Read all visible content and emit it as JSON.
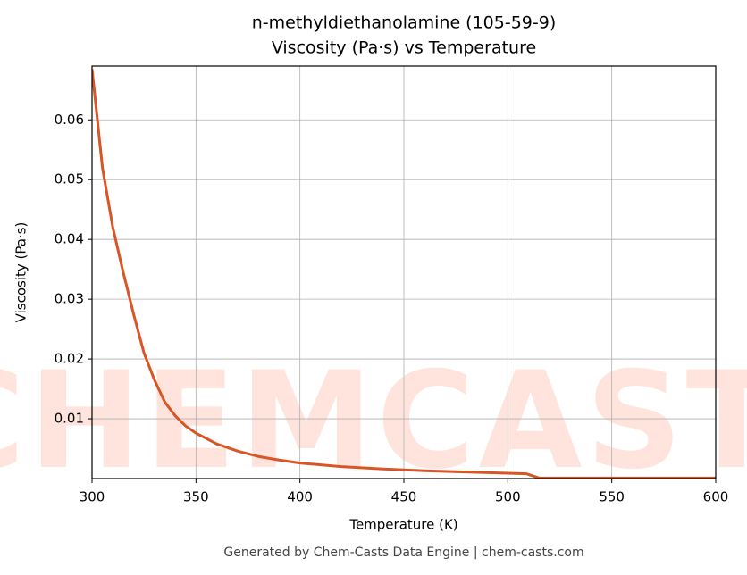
{
  "chart_data": {
    "type": "line",
    "title": "n-methyldiethanolamine (105-59-9)",
    "subtitle": "Viscosity (Pa·s) vs Temperature",
    "x_label": "Temperature (K)",
    "y_label": "Viscosity (Pa·s)",
    "footer": "Generated by Chem-Casts Data Engine | chem-casts.com",
    "watermark": "CHEMCASTS",
    "x": [
      300,
      305,
      310,
      315,
      320,
      325,
      330,
      335,
      340,
      345,
      350,
      360,
      370,
      380,
      390,
      400,
      420,
      440,
      460,
      480,
      500,
      509,
      515,
      550,
      600
    ],
    "series": [
      {
        "name": "Viscosity",
        "color": "#d95525",
        "values": [
          0.0685,
          0.052,
          0.042,
          0.0345,
          0.0275,
          0.021,
          0.0165,
          0.0128,
          0.0105,
          0.0088,
          0.0076,
          0.0058,
          0.0046,
          0.0037,
          0.0031,
          0.0026,
          0.002,
          0.0016,
          0.0013,
          0.0011,
          0.0009,
          0.0008,
          0.0001,
          0.0001,
          0.0001
        ]
      }
    ],
    "xlim": [
      300,
      600
    ],
    "ylim": [
      0,
      0.069
    ],
    "xticks": [
      300,
      350,
      400,
      450,
      500,
      550,
      600
    ],
    "yticks": [
      0.01,
      0.02,
      0.03,
      0.04,
      0.05,
      0.06
    ],
    "grid": true
  }
}
